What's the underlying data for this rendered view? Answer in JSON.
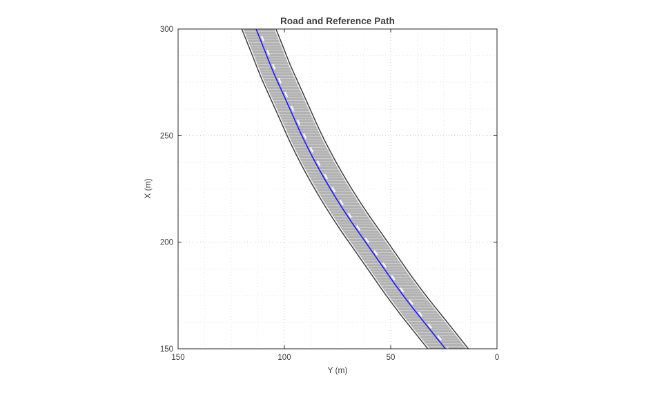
{
  "chart_data": {
    "type": "line",
    "title": "Road and Reference Path",
    "xlabel": "Y (m)",
    "ylabel": "X (m)",
    "x_axis": {
      "label": "Y (m)",
      "min": 0,
      "max": 150,
      "reversed": true,
      "ticks": [
        150,
        100,
        50,
        0
      ]
    },
    "y_axis": {
      "label": "X (m)",
      "min": 150,
      "max": 300,
      "ticks": [
        150,
        200,
        250,
        300
      ]
    },
    "grid": {
      "major": true,
      "minor": true,
      "style": "dotted",
      "major_color": "#c9c9c9",
      "minor_color": "#e4e4e4"
    },
    "road": {
      "width_m": 14.6,
      "surface_color": "#b3b3b3",
      "texture_color": "#c9c9c9",
      "edge_color": "#3f3f3f",
      "edge_marking_color": "#f2f2f2",
      "center_marking": "dashed-white",
      "center_marking_color": "#fdfdfd",
      "center": {
        "X_m": [
          300,
          290,
          280,
          270,
          260,
          250,
          240,
          230,
          220,
          210,
          200,
          190,
          180,
          170,
          160,
          150
        ],
        "Y_m": [
          112,
          108,
          104,
          99.5,
          95,
          90.5,
          85.5,
          80,
          74,
          67.5,
          60.5,
          53.5,
          46.5,
          39,
          31,
          23
        ]
      }
    },
    "series": [
      {
        "name": "reference-path",
        "color": "#1a1aff",
        "line_width": 1.6,
        "X_m": [
          300,
          290,
          280,
          270,
          260,
          250,
          240,
          230,
          220,
          210,
          200,
          190,
          180,
          170,
          160,
          150
        ],
        "Y_m": [
          113.3,
          109.3,
          105.3,
          100.8,
          96.3,
          91.8,
          86.8,
          81.3,
          75.3,
          68.8,
          61.8,
          54.8,
          47.8,
          40.3,
          32.3,
          24.3
        ]
      }
    ],
    "axis_color": "#262626",
    "tick_label_color": "#3b3b3b"
  }
}
